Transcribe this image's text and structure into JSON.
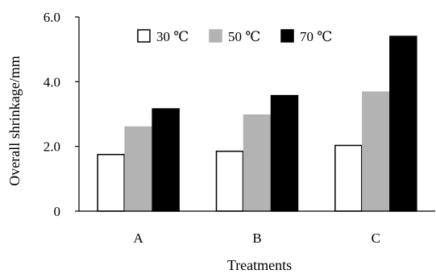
{
  "chart_data": {
    "type": "bar",
    "title": "",
    "xlabel": "Treatments",
    "ylabel": "Overall shrinkage/mm",
    "categories": [
      "A",
      "B",
      "C"
    ],
    "ylim": [
      0,
      6
    ],
    "yticks": [
      "0",
      "2.0",
      "4.0",
      "6.0"
    ],
    "grid": false,
    "legend_position": "top-right",
    "series": [
      {
        "name": "30 ℃",
        "values": [
          1.75,
          1.85,
          2.03
        ],
        "fill": "#ffffff",
        "stroke": "#000000"
      },
      {
        "name": "50 ℃",
        "values": [
          2.6,
          2.97,
          3.68
        ],
        "fill": "#b3b3b3",
        "stroke": "#b3b3b3"
      },
      {
        "name": "70 ℃",
        "values": [
          3.16,
          3.57,
          5.4
        ],
        "fill": "#000000",
        "stroke": "#000000"
      }
    ]
  }
}
